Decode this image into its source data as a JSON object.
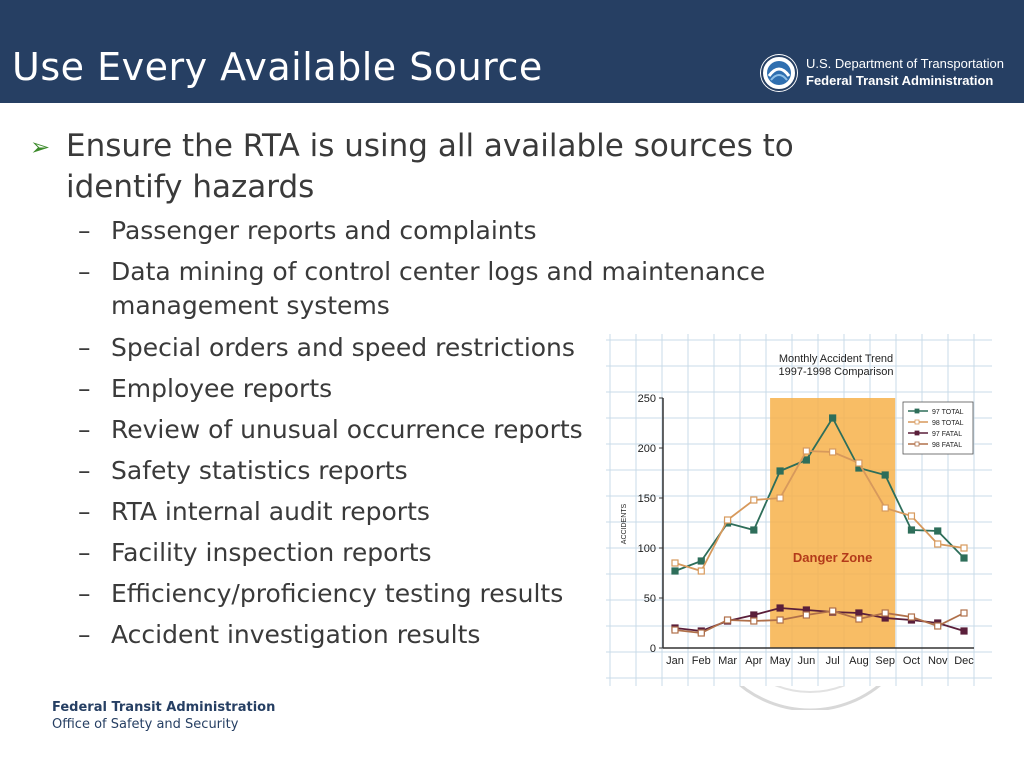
{
  "header": {
    "title": "Use Every Available Source",
    "dot_line1": "U.S. Department of Transportation",
    "dot_line2": "Federal Transit Administration"
  },
  "content": {
    "main_bullet": "Ensure the RTA is using all available sources to identify hazards",
    "sub_bullets": [
      "Passenger reports and complaints",
      "Data mining of control center logs and maintenance management systems",
      "Special orders and speed restrictions",
      "Employee reports",
      "Review of unusual occurrence reports",
      "Safety statistics reports",
      "RTA internal audit reports",
      "Facility inspection reports",
      "Efficiency/proficiency testing results",
      "Accident investigation results"
    ]
  },
  "footer": {
    "org": "Federal Transit Administration",
    "office": "Office of Safety and Security"
  },
  "colors": {
    "header_bg": "#263f63",
    "bullet_arrow": "#3b8a2a",
    "danger_zone": "#f7b24a",
    "series_97_total": "#2e6e5a",
    "series_98_total": "#d7995c",
    "series_97_fatal": "#5a1f3a",
    "series_98_fatal": "#b0704a"
  },
  "chart_data": {
    "type": "line",
    "title": "Monthly Accident Trend",
    "subtitle": "1997-1998 Comparison",
    "ylabel": "ACCIDENTS",
    "xlabel": "",
    "categories": [
      "Jan",
      "Feb",
      "Mar",
      "Apr",
      "May",
      "Jun",
      "Jul",
      "Aug",
      "Sep",
      "Oct",
      "Nov",
      "Dec"
    ],
    "ylim": [
      0,
      250
    ],
    "yticks": [
      0,
      50,
      100,
      150,
      200,
      250
    ],
    "grid": true,
    "legend_placement": "top-right",
    "annotation": "Danger Zone",
    "annotation_range": [
      "May",
      "Sep"
    ],
    "series": [
      {
        "name": "97 TOTAL",
        "values": [
          77,
          87,
          125,
          118,
          177,
          188,
          230,
          180,
          173,
          118,
          117,
          90
        ]
      },
      {
        "name": "98 TOTAL",
        "values": [
          85,
          77,
          128,
          148,
          150,
          197,
          196,
          185,
          140,
          132,
          104,
          100
        ]
      },
      {
        "name": "97 FATAL",
        "values": [
          20,
          17,
          27,
          33,
          40,
          38,
          36,
          35,
          30,
          28,
          25,
          17
        ]
      },
      {
        "name": "98 FATAL",
        "values": [
          18,
          15,
          28,
          27,
          28,
          33,
          37,
          29,
          35,
          31,
          22,
          35
        ]
      }
    ]
  }
}
